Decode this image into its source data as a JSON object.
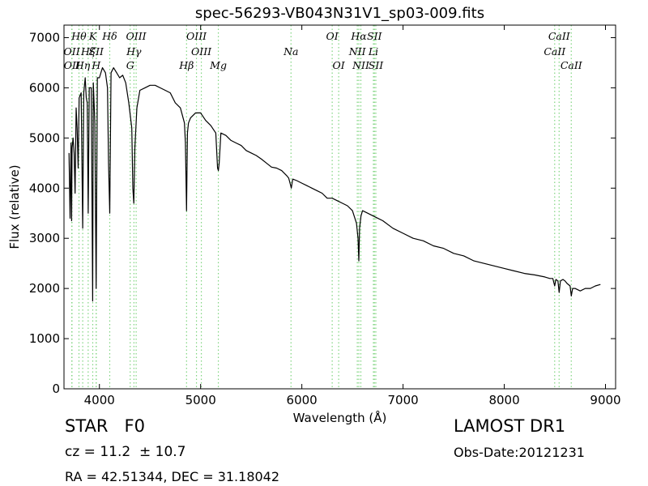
{
  "chart_data": {
    "type": "line",
    "title": "spec-56293-VB043N31V1_sp03-009.fits",
    "xlabel": "Wavelength (Å)",
    "ylabel": "Flux (relative)",
    "xlim": [
      3650,
      9100
    ],
    "ylim": [
      0,
      7250
    ],
    "xticks": [
      4000,
      5000,
      6000,
      7000,
      8000,
      9000
    ],
    "yticks": [
      0,
      1000,
      2000,
      3000,
      4000,
      5000,
      6000,
      7000
    ],
    "grid": false,
    "series": [
      {
        "color": "#000000",
        "x": [
          3700,
          3710,
          3720,
          3725,
          3730,
          3740,
          3750,
          3760,
          3770,
          3780,
          3790,
          3800,
          3820,
          3835,
          3845,
          3860,
          3870,
          3880,
          3889,
          3900,
          3920,
          3933,
          3940,
          3955,
          3968,
          3980,
          4000,
          4030,
          4060,
          4080,
          4090,
          4102,
          4115,
          4140,
          4170,
          4200,
          4230,
          4260,
          4290,
          4320,
          4330,
          4340,
          4350,
          4370,
          4400,
          4450,
          4500,
          4550,
          4600,
          4650,
          4700,
          4750,
          4800,
          4840,
          4850,
          4861,
          4870,
          4880,
          4900,
          4950,
          5000,
          5050,
          5100,
          5150,
          5167,
          5175,
          5183,
          5200,
          5250,
          5300,
          5350,
          5400,
          5450,
          5500,
          5550,
          5600,
          5650,
          5700,
          5750,
          5800,
          5850,
          5870,
          5890,
          5896,
          5910,
          5950,
          6000,
          6050,
          6100,
          6150,
          6200,
          6250,
          6300,
          6350,
          6400,
          6450,
          6500,
          6540,
          6555,
          6563,
          6570,
          6585,
          6600,
          6650,
          6700,
          6750,
          6800,
          6900,
          7000,
          7100,
          7200,
          7300,
          7400,
          7500,
          7600,
          7700,
          7800,
          7900,
          8000,
          8100,
          8200,
          8300,
          8400,
          8450,
          8480,
          8498,
          8510,
          8530,
          8542,
          8555,
          8580,
          8600,
          8620,
          8650,
          8662,
          8675,
          8700,
          8750,
          8800,
          8850,
          8900,
          8950
        ],
        "y": [
          4700,
          3400,
          4900,
          3350,
          4800,
          5000,
          4700,
          3900,
          5600,
          5200,
          4400,
          5800,
          5900,
          3200,
          5900,
          6200,
          5800,
          5700,
          3500,
          6000,
          6000,
          1750,
          6100,
          5300,
          2000,
          6200,
          6200,
          6400,
          6300,
          6000,
          4500,
          3500,
          6300,
          6400,
          6300,
          6200,
          6250,
          6100,
          5700,
          5200,
          4000,
          3700,
          4800,
          5600,
          5950,
          6000,
          6050,
          6050,
          6000,
          5950,
          5900,
          5700,
          5600,
          5300,
          4900,
          3550,
          5100,
          5300,
          5400,
          5500,
          5500,
          5350,
          5250,
          5100,
          4400,
          4350,
          4500,
          5100,
          5050,
          4950,
          4900,
          4850,
          4750,
          4700,
          4650,
          4580,
          4500,
          4420,
          4400,
          4350,
          4250,
          4200,
          4050,
          4000,
          4180,
          4150,
          4100,
          4050,
          4000,
          3950,
          3900,
          3800,
          3800,
          3750,
          3700,
          3650,
          3550,
          3300,
          3000,
          2550,
          3200,
          3450,
          3550,
          3500,
          3450,
          3400,
          3350,
          3200,
          3100,
          3000,
          2950,
          2850,
          2800,
          2700,
          2650,
          2550,
          2500,
          2450,
          2400,
          2350,
          2300,
          2270,
          2230,
          2200,
          2200,
          2050,
          2180,
          2150,
          1920,
          2150,
          2180,
          2150,
          2100,
          2050,
          1850,
          2000,
          2000,
          1950,
          2000,
          2000,
          2050,
          2080
        ]
      }
    ],
    "lines": [
      {
        "label": "Hθ",
        "x": 3798,
        "row": 0,
        "style": "top",
        "color": "#7fd47f"
      },
      {
        "label": "OII",
        "x": 3727,
        "row": 1,
        "style": "top",
        "color": "#7fd47f"
      },
      {
        "label": "OII",
        "x": 3729,
        "row": 2,
        "style": "top",
        "color": "#7fd47f"
      },
      {
        "label": "Hη",
        "x": 3835,
        "row": 2,
        "style": "top",
        "color": "#7fd47f"
      },
      {
        "label": "Hζ",
        "x": 3889,
        "row": 1,
        "style": "top",
        "color": "#7fd47f"
      },
      {
        "label": "K",
        "x": 3934,
        "row": 0,
        "style": "top",
        "color": "#7fd47f"
      },
      {
        "label": "SII",
        "x": 3968,
        "row": 1,
        "style": "top",
        "color": "#7fd47f"
      },
      {
        "label": "H",
        "x": 3969,
        "row": 2,
        "style": "top",
        "color": "#7fd47f"
      },
      {
        "label": "Hδ",
        "x": 4102,
        "row": 0,
        "style": "top",
        "color": "#7fd47f"
      },
      {
        "label": "OIII",
        "x": 4363,
        "row": 0,
        "style": "top",
        "color": "#7fd47f"
      },
      {
        "label": "Hγ",
        "x": 4341,
        "row": 1,
        "style": "top",
        "color": "#7fd47f"
      },
      {
        "label": "G",
        "x": 4304,
        "row": 2,
        "style": "top",
        "color": "#7fd47f"
      },
      {
        "label": "OIII",
        "x": 4959,
        "row": 0,
        "style": "top",
        "color": "#7fd47f"
      },
      {
        "label": "OIII",
        "x": 5007,
        "row": 1,
        "style": "top",
        "color": "#7fd47f"
      },
      {
        "label": "Hβ",
        "x": 4861,
        "row": 2,
        "style": "top",
        "color": "#7fd47f"
      },
      {
        "label": "Mg",
        "x": 5175,
        "row": 2,
        "style": "top",
        "color": "#7fd47f"
      },
      {
        "label": "Na",
        "x": 5893,
        "row": 1,
        "style": "top",
        "color": "#7fd47f"
      },
      {
        "label": "OI",
        "x": 6300,
        "row": 0,
        "style": "top",
        "color": "#7fd47f"
      },
      {
        "label": "OI",
        "x": 6364,
        "row": 2,
        "style": "top",
        "color": "#7fd47f"
      },
      {
        "label": "Hα",
        "x": 6563,
        "row": 0,
        "style": "top",
        "color": "#7fd47f"
      },
      {
        "label": "NII",
        "x": 6548,
        "row": 1,
        "style": "top",
        "color": "#7fd47f"
      },
      {
        "label": "NII",
        "x": 6583,
        "row": 2,
        "style": "top",
        "color": "#7fd47f"
      },
      {
        "label": "SII",
        "x": 6717,
        "row": 0,
        "style": "top",
        "color": "#7fd47f"
      },
      {
        "label": "Li",
        "x": 6707,
        "row": 1,
        "style": "top",
        "color": "#7fd47f"
      },
      {
        "label": "SII",
        "x": 6731,
        "row": 2,
        "style": "top",
        "color": "#7fd47f"
      },
      {
        "label": "CaII",
        "x": 8542,
        "row": 0,
        "style": "top",
        "color": "#7fd47f"
      },
      {
        "label": "CaII",
        "x": 8498,
        "row": 1,
        "style": "top",
        "color": "#7fd47f"
      },
      {
        "label": "CaII",
        "x": 8662,
        "row": 2,
        "style": "top",
        "color": "#7fd47f"
      }
    ]
  },
  "info": {
    "object_class": "STAR   F0",
    "survey": "LAMOST DR1",
    "cz": "cz = 11.2  ± 10.7",
    "obs_date": "Obs-Date:20121231",
    "radec": "RA = 42.51344, DEC = 31.18042"
  }
}
